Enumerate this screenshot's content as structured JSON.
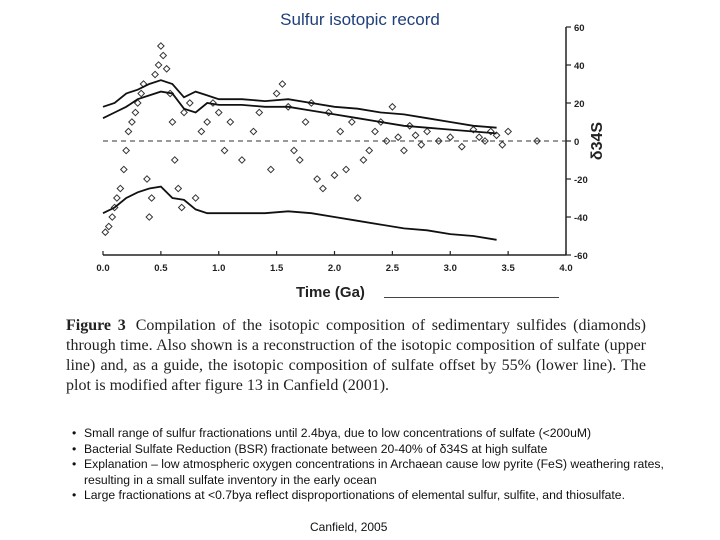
{
  "slide": {
    "title": "Sulfur isotopic record",
    "caption_label": "Figure 3",
    "caption_text": "Compilation of the isotopic composition of sedimentary sulfides (diamonds) through time. Also shown is a reconstruction of the isotopic composition of sulfate (upper line) and, as a guide, the isotopic composition of sulfate offset by 55% (lower line). The plot is modified after figure 13 in Canfield (2001).",
    "bullets": [
      "Small range of sulfur fractionations until 2.4bya, due to low concentrations of sulfate (<200uM)",
      "Bacterial Sulfate Reduction (BSR) fractionate between 20-40% of δ34S at high sulfate",
      "Explanation – low atmospheric oxygen concentrations in Archaean cause low pyrite (FeS) weathering rates, resulting in a small sulfate inventory in the early ocean",
      "Large fractionations at <0.7bya reflect disproportionations of elemental sulfur, sulfite, and thiosulfate."
    ],
    "source": "Canfield, 2005"
  },
  "chart_data": {
    "type": "scatter",
    "xlabel": "Time (Ga)",
    "ylabel": "δ34S",
    "xlim": [
      0,
      4
    ],
    "ylim": [
      -60,
      60
    ],
    "x_ticks": [
      "0.0",
      "0.5",
      "1.0",
      "1.5",
      "2.0",
      "2.5",
      "3.0",
      "3.5",
      "4.0"
    ],
    "y_ticks": [
      "-60",
      "-40",
      "-20",
      "0",
      "20",
      "40",
      "60"
    ],
    "y_axis_side": "right",
    "zero_line": "dashed",
    "marker": "diamond",
    "series": [
      {
        "name": "sulfides (diamonds)",
        "kind": "points",
        "x": [
          0.02,
          0.05,
          0.08,
          0.1,
          0.12,
          0.15,
          0.18,
          0.2,
          0.22,
          0.25,
          0.28,
          0.3,
          0.33,
          0.35,
          0.38,
          0.4,
          0.42,
          0.45,
          0.48,
          0.5,
          0.52,
          0.55,
          0.58,
          0.6,
          0.62,
          0.65,
          0.68,
          0.7,
          0.75,
          0.8,
          0.85,
          0.9,
          0.95,
          1.0,
          1.05,
          1.1,
          1.2,
          1.3,
          1.35,
          1.45,
          1.5,
          1.55,
          1.6,
          1.65,
          1.7,
          1.75,
          1.8,
          1.85,
          1.9,
          1.95,
          2.0,
          2.05,
          2.1,
          2.15,
          2.2,
          2.25,
          2.3,
          2.35,
          2.4,
          2.45,
          2.5,
          2.55,
          2.6,
          2.65,
          2.7,
          2.75,
          2.8,
          2.9,
          3.0,
          3.1,
          3.2,
          3.25,
          3.3,
          3.35,
          3.4,
          3.45,
          3.5,
          3.75
        ],
        "y": [
          -48,
          -45,
          -40,
          -35,
          -30,
          -25,
          -15,
          -5,
          5,
          10,
          15,
          20,
          25,
          30,
          -20,
          -40,
          -30,
          35,
          40,
          50,
          45,
          38,
          25,
          10,
          -10,
          -25,
          -35,
          15,
          20,
          -30,
          5,
          10,
          20,
          15,
          -5,
          10,
          -10,
          5,
          15,
          -15,
          25,
          30,
          18,
          -5,
          -10,
          10,
          20,
          -20,
          -25,
          15,
          -18,
          5,
          -15,
          10,
          -30,
          -10,
          -5,
          5,
          10,
          0,
          18,
          2,
          -5,
          8,
          3,
          -2,
          5,
          0,
          2,
          -3,
          6,
          2,
          0,
          5,
          3,
          -2,
          5,
          0
        ]
      },
      {
        "name": "sulfate (upper line)",
        "kind": "line",
        "x": [
          0,
          0.1,
          0.2,
          0.3,
          0.4,
          0.5,
          0.6,
          0.7,
          0.8,
          0.9,
          1.0,
          1.2,
          1.4,
          1.6,
          1.8,
          2.0,
          2.2,
          2.4,
          2.6,
          2.8,
          3.0,
          3.2,
          3.4
        ],
        "y": [
          18,
          20,
          25,
          27,
          30,
          32,
          30,
          23,
          26,
          24,
          22,
          22,
          21,
          22,
          20,
          18,
          17,
          15,
          14,
          12,
          10,
          8,
          7
        ]
      },
      {
        "name": "sulfate (upper band)",
        "kind": "line",
        "x": [
          0,
          0.1,
          0.2,
          0.3,
          0.4,
          0.5,
          0.6,
          0.7,
          0.8,
          0.9,
          1.0,
          1.2,
          1.4,
          1.6,
          1.8,
          2.0,
          2.2,
          2.4,
          2.6,
          2.8,
          3.0,
          3.2,
          3.4
        ],
        "y": [
          12,
          15,
          18,
          22,
          24,
          26,
          25,
          17,
          15,
          20,
          19,
          19,
          18,
          18,
          16,
          14,
          12,
          10,
          8,
          7,
          6,
          5,
          4
        ]
      },
      {
        "name": "sulfate offset by 55% (lower line)",
        "kind": "line",
        "x": [
          0,
          0.1,
          0.2,
          0.3,
          0.4,
          0.5,
          0.6,
          0.7,
          0.8,
          0.9,
          1.0,
          1.2,
          1.4,
          1.6,
          1.8,
          2.0,
          2.2,
          2.4,
          2.6,
          2.8,
          3.0,
          3.2,
          3.4
        ],
        "y": [
          -38,
          -35,
          -30,
          -27,
          -25,
          -24,
          -30,
          -31,
          -36,
          -38,
          -38,
          -38,
          -38,
          -37,
          -38,
          -40,
          -42,
          -44,
          -46,
          -47,
          -49,
          -50,
          -52
        ]
      }
    ]
  }
}
